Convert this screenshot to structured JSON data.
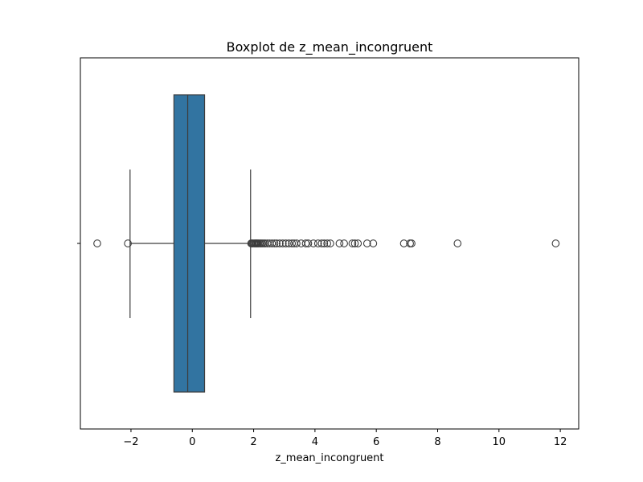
{
  "chart_data": {
    "type": "boxplot",
    "title": "Boxplot de z_mean_incongruent",
    "xlabel": "z_mean_incongruent",
    "ylabel": "",
    "xlim": [
      -3.65,
      12.6
    ],
    "xticks": [
      -2,
      0,
      2,
      4,
      6,
      8,
      10,
      12
    ],
    "xtick_labels": [
      "−2",
      "0",
      "2",
      "4",
      "6",
      "8",
      "10",
      "12"
    ],
    "grid": false,
    "box": {
      "q1": -0.6,
      "median": -0.15,
      "q3": 0.4,
      "whisker_low": -2.03,
      "whisker_high": 1.9,
      "color": "#3274a1"
    },
    "outliers": [
      -3.1,
      -2.1,
      1.92,
      1.95,
      1.98,
      2.02,
      2.05,
      2.08,
      2.1,
      2.13,
      2.16,
      2.2,
      2.24,
      2.28,
      2.33,
      2.38,
      2.45,
      2.52,
      2.6,
      2.68,
      2.75,
      2.85,
      2.95,
      3.05,
      3.15,
      3.25,
      3.32,
      3.4,
      3.55,
      3.7,
      3.78,
      3.95,
      4.1,
      4.22,
      4.3,
      4.4,
      4.5,
      4.8,
      4.95,
      5.22,
      5.3,
      5.4,
      5.7,
      5.9,
      6.9,
      7.1,
      7.15,
      8.65,
      11.85
    ]
  }
}
